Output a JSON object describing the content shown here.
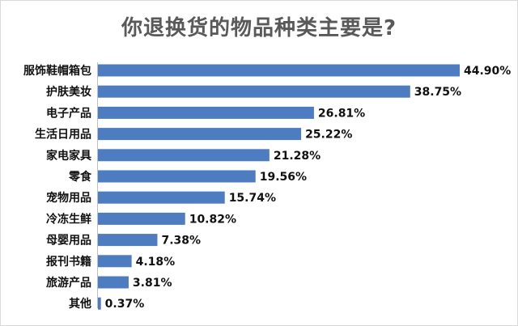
{
  "chart_data": {
    "type": "bar",
    "orientation": "horizontal",
    "title": "你退换货的物品种类主要是?",
    "categories": [
      "服饰鞋帽箱包",
      "护肤美妆",
      "电子产品",
      "生活日用品",
      "家电家具",
      "零食",
      "宠物用品",
      "冷冻生鲜",
      "母婴用品",
      "报刊书籍",
      "旅游产品",
      "其他"
    ],
    "values": [
      44.9,
      38.75,
      26.81,
      25.22,
      21.28,
      19.56,
      15.74,
      10.82,
      7.38,
      4.18,
      3.81,
      0.37
    ],
    "value_labels": [
      "44.90%",
      "38.75%",
      "26.81%",
      "25.22%",
      "21.28%",
      "19.56%",
      "15.74%",
      "10.82%",
      "7.38%",
      "4.18%",
      "3.81%",
      "0.37%"
    ],
    "unit": "%",
    "xlim": [
      0,
      44.9
    ],
    "bar_color": "#4E7CC0",
    "grid": false,
    "legend": "none"
  }
}
